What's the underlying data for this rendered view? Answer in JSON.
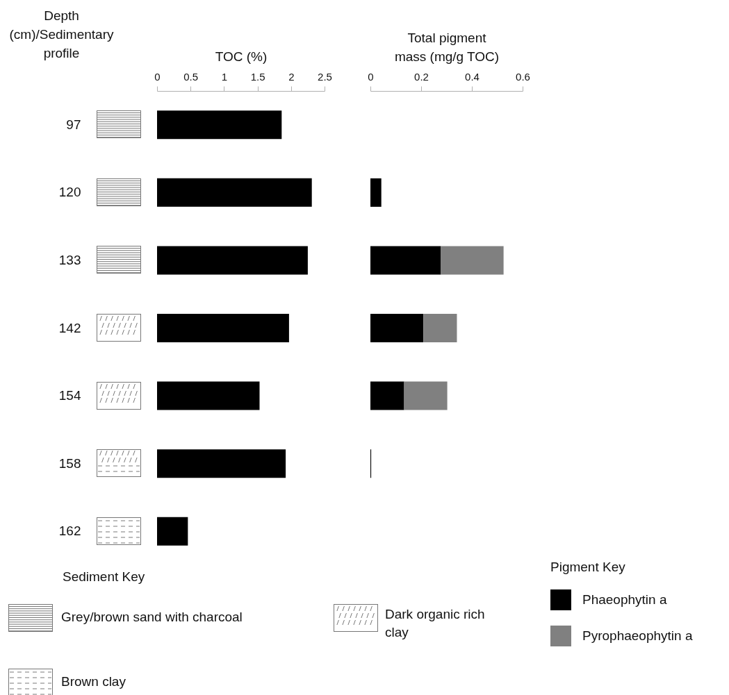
{
  "chart_data": [
    {
      "type": "bar",
      "orientation": "horizontal",
      "xlabel": "TOC (%)",
      "ylabel": "Depth (cm)/Sedimentary profile",
      "categories": [
        "97",
        "120",
        "133",
        "142",
        "154",
        "158",
        "162"
      ],
      "values": [
        1.86,
        2.31,
        2.25,
        1.97,
        1.53,
        1.92,
        0.46
      ],
      "color": "#000000",
      "xlim": [
        0,
        2.5
      ],
      "xticks": [
        0,
        0.5,
        1,
        1.5,
        2,
        2.5
      ],
      "grid": false,
      "annotations": [
        "Sediment Key",
        "Grey/brown sand with charcoal",
        "Dark organic rich clay",
        "Brown clay"
      ]
    },
    {
      "type": "bar",
      "orientation": "horizontal",
      "stacked": true,
      "xlabel": "Total pigment mass (mg/g TOC)",
      "categories": [
        "97",
        "120",
        "133",
        "142",
        "154",
        "158",
        "162"
      ],
      "series": [
        {
          "name": "Phaeophytin a",
          "color": "#000000",
          "values": [
            null,
            0.043,
            0.278,
            0.209,
            0.133,
            0.003,
            null
          ]
        },
        {
          "name": "Pyrophaeophytin a",
          "color": "#808080",
          "values": [
            null,
            null,
            0.247,
            0.132,
            0.17,
            null,
            null
          ]
        }
      ],
      "xlim": [
        0,
        0.6
      ],
      "xticks": [
        0,
        0.2,
        0.4,
        0.6
      ],
      "grid": false,
      "tick_labels": "x",
      "legend": "bottom right",
      "legend_title": "Pigment Key"
    }
  ]
}
